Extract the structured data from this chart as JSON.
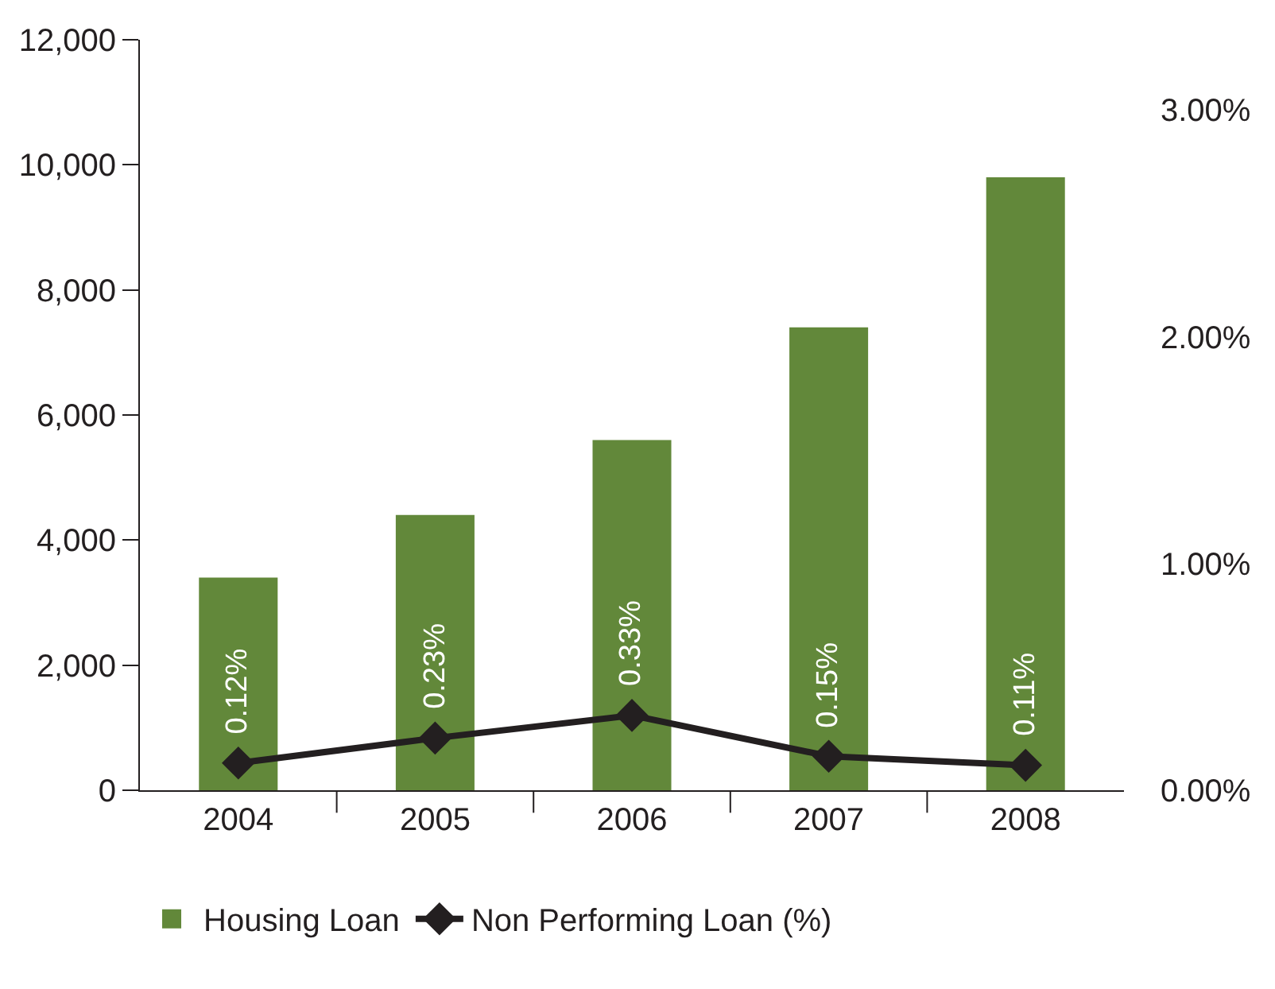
{
  "chart_data": {
    "type": "bar",
    "categories": [
      "2004",
      "2005",
      "2006",
      "2007",
      "2008"
    ],
    "series": [
      {
        "name": "Housing Loan",
        "color": "#62883a",
        "values": [
          3400,
          4400,
          5600,
          7400,
          9800
        ]
      },
      {
        "name": "Non Performing Loan (%)",
        "type": "line",
        "axis": "y2",
        "color": "#231f20",
        "marker": "diamond",
        "values": [
          0.12,
          0.23,
          0.33,
          0.15,
          0.11
        ],
        "value_labels": [
          "0.12%",
          "0.23%",
          "0.33%",
          "0.15%",
          "0.11%"
        ]
      }
    ],
    "ylim": [
      0,
      12000
    ],
    "yticks": [
      0,
      {
        "value": 2000,
        "label": "2,000"
      },
      {
        "value": 4000,
        "label": "4,000"
      },
      {
        "value": 6000,
        "label": "6,000"
      },
      {
        "value": 8000,
        "label": "8,000"
      },
      {
        "value": 10000,
        "label": "10,000"
      },
      {
        "value": 12000,
        "label": "12,000"
      }
    ],
    "y2lim": [
      0,
      3.31
    ],
    "y2ticks": [
      {
        "value": 0,
        "label": "0.00%"
      },
      {
        "value": 1,
        "label": "1.00%"
      },
      {
        "value": 2,
        "label": "2.00%"
      },
      {
        "value": 3,
        "label": "3.00%"
      }
    ],
    "legend": "bottom"
  }
}
